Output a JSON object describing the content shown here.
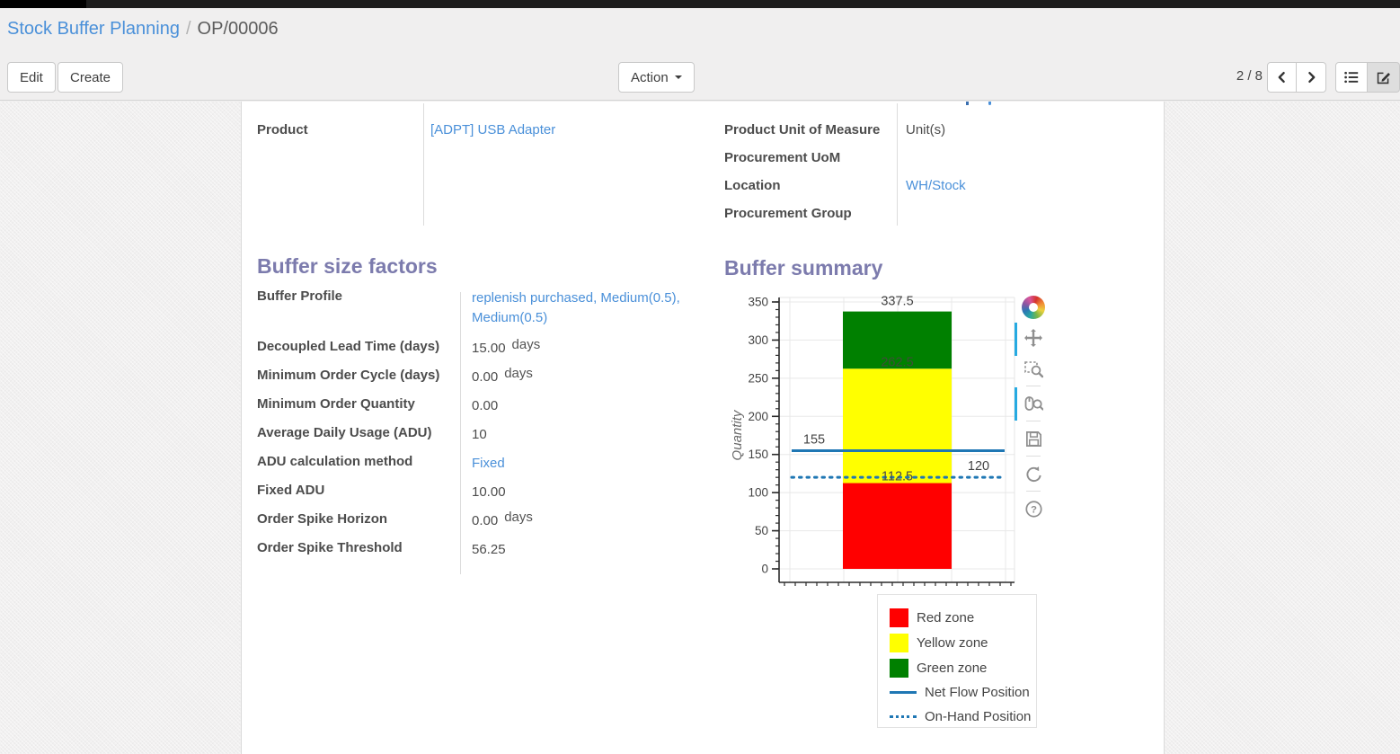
{
  "breadcrumb": {
    "parent": "Stock Buffer Planning",
    "separator": "/",
    "current": "OP/00006"
  },
  "toolbar": {
    "edit_label": "Edit",
    "create_label": "Create",
    "action_label": "Action",
    "pager": "2 / 8"
  },
  "form": {
    "left_group": {
      "fields": [
        {
          "label": "Product",
          "value": "[ADPT] USB Adapter",
          "link": true
        }
      ]
    },
    "right_group": {
      "fields": [
        {
          "label": "Product Unit of Measure",
          "value": "Unit(s)"
        },
        {
          "label": "Procurement UoM",
          "value": ""
        },
        {
          "label": "Location",
          "value": "WH/Stock",
          "link": true
        },
        {
          "label": "Procurement Group",
          "value": ""
        }
      ]
    },
    "buffer_factors": {
      "heading": "Buffer size factors",
      "fields": [
        {
          "label": "Buffer Profile",
          "value": "replenish purchased, Medium(0.5), Medium(0.5)",
          "link": true
        },
        {
          "label": "Decoupled Lead Time (days)",
          "value": "15.00",
          "suffix": "days"
        },
        {
          "label": "Minimum Order Cycle (days)",
          "value": "0.00",
          "suffix": "days"
        },
        {
          "label": "Minimum Order Quantity",
          "value": "0.00"
        },
        {
          "label": "Average Daily Usage (ADU)",
          "value": "10"
        },
        {
          "label": "ADU calculation method",
          "value": "Fixed",
          "link": true
        },
        {
          "label": "Fixed ADU",
          "value": "10.00"
        },
        {
          "label": "Order Spike Horizon",
          "value": "0.00",
          "suffix": "days"
        },
        {
          "label": "Order Spike Threshold",
          "value": "56.25"
        }
      ]
    },
    "buffer_summary": {
      "heading": "Buffer summary"
    }
  },
  "chart_data": {
    "type": "bar",
    "title": "Buffer summary",
    "xlabel": "",
    "ylabel": "Quantity",
    "ylim": [
      0,
      350
    ],
    "yticks": [
      0,
      50,
      100,
      150,
      200,
      250,
      300,
      350
    ],
    "minor_tick_step": 10,
    "grid": true,
    "zones": [
      {
        "label": "Red zone",
        "from": 0,
        "to": 112.5,
        "color": "#ff0000"
      },
      {
        "label": "Yellow zone",
        "from": 112.5,
        "to": 262.5,
        "color": "#ffff00"
      },
      {
        "label": "Green zone",
        "from": 262.5,
        "to": 337.5,
        "color": "#008000"
      }
    ],
    "lines": [
      {
        "label": "Net Flow Position",
        "value": 155,
        "style": "solid",
        "color": "#1f77b4"
      },
      {
        "label": "On-Hand Position",
        "value": 120,
        "style": "dotted",
        "color": "#1f77b4"
      }
    ],
    "annotations": [
      {
        "text": "337.5",
        "value": 337.5,
        "anchor": "bar",
        "dy": -7,
        "color": "#444444"
      },
      {
        "text": "262.5",
        "value": 262.5,
        "anchor": "bar",
        "dy": -3,
        "color": "#3f4d38"
      },
      {
        "text": "112.5",
        "value": 112.5,
        "anchor": "bar",
        "dy": -3,
        "color": "#4a4a4a"
      },
      {
        "text": "155",
        "value": 155,
        "anchor": "left",
        "dy": -8,
        "color": "#444444"
      },
      {
        "text": "120",
        "value": 120,
        "anchor": "right",
        "dy": -8,
        "color": "#444444"
      }
    ],
    "legend": [
      {
        "label": "Red zone",
        "swatch": "square",
        "color": "#ff0000"
      },
      {
        "label": "Yellow zone",
        "swatch": "square",
        "color": "#ffff00"
      },
      {
        "label": "Green zone",
        "swatch": "square",
        "color": "#008000"
      },
      {
        "label": "Net Flow Position",
        "swatch": "line",
        "color": "#1f77b4"
      },
      {
        "label": "On-Hand Position",
        "swatch": "dotted-line",
        "color": "#1f77b4"
      }
    ],
    "legend_position": "below-right",
    "toolbar": {
      "logo": "bokeh",
      "tools": [
        "pan",
        "box-zoom",
        "wheel-zoom",
        "save",
        "reset",
        "help"
      ],
      "active": [
        "pan",
        "wheel-zoom"
      ]
    }
  }
}
